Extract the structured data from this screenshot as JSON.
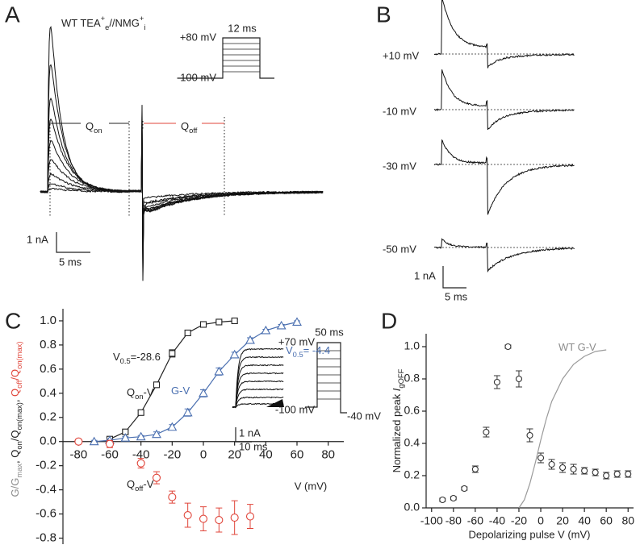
{
  "panel_a": {
    "letter": "A",
    "title_parts": [
      {
        "text": "WT TEA"
      },
      {
        "text": "+",
        "sup": true
      },
      {
        "text": "e",
        "sub": true
      },
      {
        "text": "//NMG"
      },
      {
        "text": "+",
        "sup": true
      },
      {
        "text": "i",
        "sub": true
      }
    ],
    "pulse_duration": "12 ms",
    "pulse_high": "+80 mV",
    "pulse_low": "-100 mV",
    "qon_parts": [
      {
        "text": "Q"
      },
      {
        "text": "on",
        "sub": true
      }
    ],
    "qoff_parts": [
      {
        "text": "Q"
      },
      {
        "text": "off",
        "sub": true
      }
    ],
    "scale_current": "1 nA",
    "scale_time": "5 ms"
  },
  "panel_b": {
    "letter": "B",
    "voltages": [
      "+10 mV",
      "-10 mV",
      "-30 mV",
      "-50 mV"
    ],
    "scale_current": "1 nA",
    "scale_time": "5 ms"
  },
  "chart_data": [
    {
      "type": "scatter",
      "letter": "C",
      "x_label": "V (mV)",
      "y_label_parts": [
        {
          "text": "G/G",
          "color": "#8c8c8c"
        },
        {
          "text": "max",
          "sub": true,
          "color": "#8c8c8c"
        },
        {
          "text": ", Q",
          "color": "#222222"
        },
        {
          "text": "on",
          "sub": true,
          "color": "#222222"
        },
        {
          "text": "/Q",
          "color": "#222222"
        },
        {
          "text": "on(max)",
          "sub": true,
          "color": "#222222"
        },
        {
          "text": ", ",
          "color": "#222222"
        },
        {
          "text": "Q",
          "color": "#e0453a"
        },
        {
          "text": "off",
          "sub": true,
          "color": "#e0453a"
        },
        {
          "text": "/Q",
          "color": "#e0453a"
        },
        {
          "text": "on(max)",
          "sub": true,
          "color": "#e0453a"
        }
      ],
      "xlim": [
        -90,
        90
      ],
      "ylim": [
        -0.85,
        1.1
      ],
      "xticks": [
        -80,
        -60,
        -40,
        -20,
        0,
        20,
        40,
        60,
        80
      ],
      "yticks": [
        {
          "value": 1,
          "label": "1.0"
        },
        0.8,
        0.6,
        0.4,
        0.2,
        {
          "value": 0,
          "label": "0.0"
        },
        -0.2,
        -0.4,
        -0.6,
        -0.8
      ],
      "series": [
        {
          "marker": "square",
          "line": true,
          "color": "#222222",
          "x": [
            -60,
            -50,
            -40,
            -30,
            -20,
            -10,
            0,
            10,
            20
          ],
          "values": [
            0.02,
            0.08,
            0.24,
            0.47,
            0.73,
            0.9,
            0.97,
            0.99,
            1.0
          ],
          "errors": [
            0.01,
            0.01,
            0.02,
            0.02,
            0.03,
            0.02,
            0.01,
            0.01,
            0.01
          ]
        },
        {
          "marker": "triangle",
          "line": true,
          "color": "#4a6fb0",
          "x": [
            -70,
            -60,
            -50,
            -40,
            -30,
            -20,
            -10,
            0,
            10,
            20,
            30,
            40,
            50,
            60
          ],
          "values": [
            0.0,
            0.01,
            0.03,
            0.04,
            0.06,
            0.12,
            0.24,
            0.4,
            0.58,
            0.72,
            0.84,
            0.92,
            0.96,
            0.99
          ],
          "errors": [
            0.01,
            0.01,
            0.01,
            0.01,
            0.02,
            0.02,
            0.03,
            0.03,
            0.03,
            0.02,
            0.02,
            0.01,
            0.01,
            0.01
          ]
        },
        {
          "marker": "circle",
          "line": false,
          "color": "#e0453a",
          "x": [
            -80,
            -60,
            -40,
            -30,
            -20,
            -10,
            0,
            10,
            20,
            30
          ],
          "values": [
            0.0,
            -0.02,
            -0.18,
            -0.3,
            -0.46,
            -0.61,
            -0.64,
            -0.65,
            -0.63,
            -0.62
          ],
          "errors": [
            0.02,
            0.03,
            0.04,
            0.05,
            0.05,
            0.1,
            0.1,
            0.1,
            0.14,
            0.1
          ]
        }
      ],
      "annotations": [
        {
          "color": "#222222",
          "parts": [
            {
              "text": "V"
            },
            {
              "text": "0.5",
              "sub": true
            },
            {
              "text": "=-28.6"
            }
          ]
        },
        {
          "color": "#4a6fb0",
          "parts": [
            {
              "text": "V"
            },
            {
              "text": "0.5",
              "sub": true
            },
            {
              "text": "= -4.4"
            }
          ]
        },
        {
          "color": "#222222",
          "parts": [
            {
              "text": "Q"
            },
            {
              "text": "on",
              "sub": true
            },
            {
              "text": "-V"
            }
          ]
        },
        {
          "color": "#4a6fb0",
          "parts": [
            {
              "text": "G-V"
            }
          ]
        },
        {
          "color": "#222222",
          "parts": [
            {
              "text": "Q"
            },
            {
              "text": "off",
              "sub": true
            },
            {
              "text": "-V"
            }
          ]
        }
      ],
      "inset": {
        "pulse_duration": "50 ms",
        "pulse_high": "+70 mV",
        "pulse_low": "-100 mV",
        "pulse_end": "-40 mV",
        "scale_current": "1 nA",
        "scale_time": "10 ms"
      }
    },
    {
      "type": "scatter",
      "letter": "D",
      "x_label": "Depolarizing pulse V (mV)",
      "y_label_parts": [
        {
          "text": "Normalized peak "
        },
        {
          "text": "I",
          "italic": true
        },
        {
          "text": "gOFF",
          "sub": true
        }
      ],
      "xlim": [
        -105,
        85
      ],
      "ylim": [
        0,
        1.08
      ],
      "xticks": [
        -100,
        -80,
        -60,
        -40,
        -20,
        0,
        20,
        40,
        60,
        80
      ],
      "yticks": [
        {
          "value": 0,
          "label": "0.0"
        },
        0.2,
        0.4,
        0.6,
        0.8,
        {
          "value": 1,
          "label": "1.0"
        }
      ],
      "series": [
        {
          "marker": "circle",
          "line": false,
          "color": "#333333",
          "x": [
            -90,
            -80,
            -70,
            -60,
            -50,
            -40,
            -30,
            -20,
            -10,
            0,
            10,
            20,
            30,
            40,
            50,
            60,
            70,
            80
          ],
          "values": [
            0.05,
            0.06,
            0.12,
            0.24,
            0.47,
            0.78,
            1.0,
            0.8,
            0.45,
            0.31,
            0.27,
            0.25,
            0.24,
            0.23,
            0.22,
            0.2,
            0.21,
            0.21
          ],
          "errors": [
            0.01,
            0.01,
            0.01,
            0.02,
            0.03,
            0.04,
            0.01,
            0.05,
            0.04,
            0.03,
            0.03,
            0.03,
            0.03,
            0.02,
            0.02,
            0.02,
            0.02,
            0.02
          ]
        },
        {
          "marker": "none",
          "line": true,
          "color": "#9a9a9a",
          "x": [
            -20,
            -15,
            -10,
            -5,
            0,
            5,
            10,
            20,
            30,
            40,
            50,
            60
          ],
          "values": [
            0.0,
            0.05,
            0.15,
            0.28,
            0.42,
            0.55,
            0.66,
            0.8,
            0.89,
            0.94,
            0.97,
            0.98
          ]
        }
      ],
      "annotations": [
        {
          "color": "#8c8c8c",
          "parts": [
            {
              "text": "WT G-V"
            }
          ]
        }
      ]
    }
  ]
}
